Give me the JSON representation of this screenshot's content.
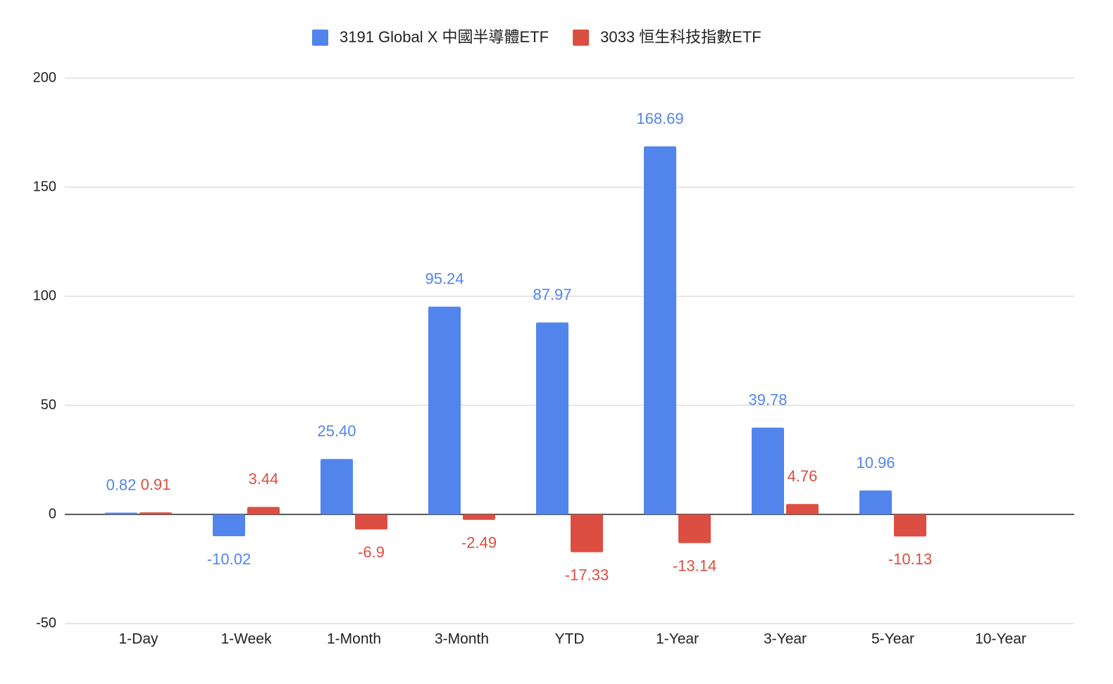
{
  "chart_data": {
    "type": "bar",
    "categories": [
      "1-Day",
      "1-Week",
      "1-Month",
      "3-Month",
      "YTD",
      "1-Year",
      "3-Year",
      "5-Year",
      "10-Year"
    ],
    "series": [
      {
        "name": "3191 Global X 中國半導體ETF",
        "color": "#5285ec",
        "values": [
          0.82,
          -10.02,
          25.4,
          95.24,
          87.97,
          168.69,
          39.78,
          10.96,
          null
        ],
        "value_labels": [
          "0.82",
          "-10.02",
          "25.40",
          "95.24",
          "87.97",
          "168.69",
          "39.78",
          "10.96",
          null
        ]
      },
      {
        "name": "3033 恒生科技指數ETF",
        "color": "#dc4e41",
        "values": [
          0.91,
          3.44,
          -6.9,
          -2.49,
          -17.33,
          -13.14,
          4.76,
          -10.13,
          null
        ],
        "value_labels": [
          "0.91",
          "3.44",
          "-6.9",
          "-2.49",
          "-17.33",
          "-13.14",
          "4.76",
          "-10.13",
          null
        ]
      }
    ],
    "ylim": [
      -50,
      200
    ],
    "yticks": [
      -50,
      0,
      50,
      100,
      150,
      200
    ],
    "grid": true,
    "legend": "top"
  }
}
